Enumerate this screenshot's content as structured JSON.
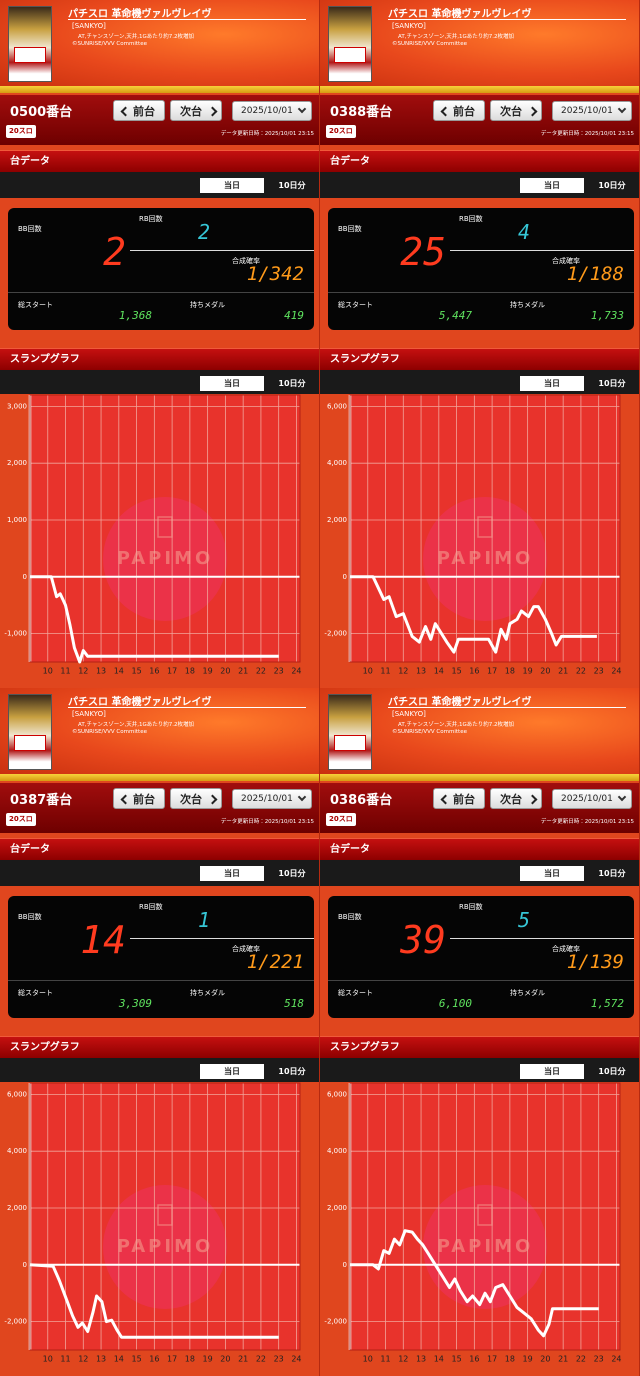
{
  "panels": [
    {
      "title": "パチスロ 革命機ヴァルヴレイヴ",
      "maker": "[SANKYO]",
      "spec": "AT,チャンスゾーン,天井,1Gあたり約7.2枚増加",
      "copyright": "©SUNRISE/VVV Committee",
      "machine": "0500番台",
      "prev": "前台",
      "next": "次台",
      "date": "2025/10/01",
      "rate": "20スロ",
      "updated": "データ更新日時：2025/10/01 23:15",
      "data_section": "台データ",
      "tabs": [
        "当日",
        "10日分"
      ],
      "bb_label": "BB回数",
      "bb": "2",
      "rb_label": "RB回数",
      "rb": "2",
      "prob_label": "合成確率",
      "prob": "1/342",
      "start_label": "総スタート",
      "start": "1,368",
      "medal_label": "持ちメダル",
      "medal": "419",
      "graph_section": "スランプグラフ",
      "graph_tabs": [
        "当日",
        "10日分"
      ],
      "watermark": "PAPIMO"
    },
    {
      "title": "パチスロ 革命機ヴァルヴレイヴ",
      "maker": "[SANKYO]",
      "spec": "AT,チャンスゾーン,天井,1Gあたり約7.2枚増加",
      "copyright": "©SUNRISE/VVV Committee",
      "machine": "0388番台",
      "prev": "前台",
      "next": "次台",
      "date": "2025/10/01",
      "rate": "20スロ",
      "updated": "データ更新日時：2025/10/01 23:15",
      "data_section": "台データ",
      "tabs": [
        "当日",
        "10日分"
      ],
      "bb_label": "BB回数",
      "bb": "25",
      "rb_label": "RB回数",
      "rb": "4",
      "prob_label": "合成確率",
      "prob": "1/188",
      "start_label": "総スタート",
      "start": "5,447",
      "medal_label": "持ちメダル",
      "medal": "1,733",
      "graph_section": "スランプグラフ",
      "graph_tabs": [
        "当日",
        "10日分"
      ],
      "watermark": "PAPIMO"
    },
    {
      "title": "パチスロ 革命機ヴァルヴレイヴ",
      "maker": "[SANKYO]",
      "spec": "AT,チャンスゾーン,天井,1Gあたり約7.2枚増加",
      "copyright": "©SUNRISE/VVV Committee",
      "machine": "0387番台",
      "prev": "前台",
      "next": "次台",
      "date": "2025/10/01",
      "rate": "20スロ",
      "updated": "データ更新日時：2025/10/01 23:15",
      "data_section": "台データ",
      "tabs": [
        "当日",
        "10日分"
      ],
      "bb_label": "BB回数",
      "bb": "14",
      "rb_label": "RB回数",
      "rb": "1",
      "prob_label": "合成確率",
      "prob": "1/221",
      "start_label": "総スタート",
      "start": "3,309",
      "medal_label": "持ちメダル",
      "medal": "518",
      "graph_section": "スランプグラフ",
      "graph_tabs": [
        "当日",
        "10日分"
      ],
      "watermark": "PAPIMO"
    },
    {
      "title": "パチスロ 革命機ヴァルヴレイヴ",
      "maker": "[SANKYO]",
      "spec": "AT,チャンスゾーン,天井,1Gあたり約7.2枚増加",
      "copyright": "©SUNRISE/VVV Committee",
      "machine": "0386番台",
      "prev": "前台",
      "next": "次台",
      "date": "2025/10/01",
      "rate": "20スロ",
      "updated": "データ更新日時：2025/10/01 23:15",
      "data_section": "台データ",
      "tabs": [
        "当日",
        "10日分"
      ],
      "bb_label": "BB回数",
      "bb": "39",
      "rb_label": "RB回数",
      "rb": "5",
      "prob_label": "合成確率",
      "prob": "1/139",
      "start_label": "総スタート",
      "start": "6,100",
      "medal_label": "持ちメダル",
      "medal": "1,572",
      "graph_section": "スランプグラフ",
      "graph_tabs": [
        "当日",
        "10日分"
      ],
      "watermark": "PAPIMO"
    }
  ],
  "chart_data": [
    {
      "type": "line",
      "color": "#ffffff",
      "grid": true,
      "x": [
        9,
        10.2,
        10.5,
        10.7,
        10.85,
        11.0,
        11.25,
        11.5,
        11.8,
        12.0,
        12.25,
        23
      ],
      "values": [
        0,
        0,
        -350,
        -300,
        -400,
        -500,
        -850,
        -1250,
        -1500,
        -1300,
        -1400,
        -1400
      ],
      "xlim": [
        9,
        24.2
      ],
      "xticks": [
        10,
        11,
        12,
        13,
        14,
        15,
        16,
        17,
        18,
        19,
        20,
        21,
        22,
        23,
        24
      ],
      "ylim": [
        -1500,
        3200
      ],
      "yticks": [
        {
          "value": -1000,
          "label": "-1,000"
        },
        0,
        {
          "value": 1000,
          "label": "1,000"
        },
        {
          "value": 2000,
          "label": "2,000"
        },
        {
          "value": 3000,
          "label": "3,000"
        }
      ]
    },
    {
      "type": "line",
      "color": "#ffffff",
      "grid": true,
      "x": [
        9,
        10.3,
        10.9,
        11.2,
        11.6,
        12.0,
        12.5,
        12.9,
        13.25,
        13.55,
        13.8,
        14.15,
        14.45,
        14.85,
        15.1,
        16.8,
        17.2,
        17.5,
        17.8,
        18.0,
        18.4,
        18.65,
        19.05,
        19.35,
        19.6,
        20.0,
        20.35,
        20.6,
        20.9,
        22.9
      ],
      "values": [
        0,
        0,
        -800,
        -700,
        -1400,
        -1300,
        -2100,
        -2300,
        -1750,
        -2200,
        -1650,
        -2000,
        -2300,
        -2650,
        -2200,
        -2200,
        -2650,
        -1850,
        -2200,
        -1650,
        -1500,
        -1200,
        -1400,
        -1050,
        -1050,
        -1500,
        -2000,
        -2400,
        -2100,
        -2100
      ],
      "xlim": [
        9,
        24.2
      ],
      "xticks": [
        10,
        11,
        12,
        13,
        14,
        15,
        16,
        17,
        18,
        19,
        20,
        21,
        22,
        23,
        24
      ],
      "ylim": [
        -3000,
        6400
      ],
      "yticks": [
        {
          "value": -2000,
          "label": "-2,000"
        },
        0,
        {
          "value": 2000,
          "label": "2,000"
        },
        {
          "value": 4000,
          "label": "4,000"
        },
        {
          "value": 6000,
          "label": "6,000"
        }
      ]
    },
    {
      "type": "line",
      "color": "#ffffff",
      "grid": true,
      "x": [
        9,
        10.3,
        10.65,
        11.1,
        11.4,
        11.7,
        11.95,
        12.25,
        12.55,
        12.75,
        13.05,
        13.3,
        13.6,
        13.9,
        14.15,
        14.45,
        23
      ],
      "values": [
        0,
        -50,
        -550,
        -1300,
        -1800,
        -2200,
        -2050,
        -2350,
        -1650,
        -1100,
        -1300,
        -2000,
        -1950,
        -2300,
        -2550,
        -2550,
        -2550
      ],
      "xlim": [
        9,
        24.2
      ],
      "xticks": [
        10,
        11,
        12,
        13,
        14,
        15,
        16,
        17,
        18,
        19,
        20,
        21,
        22,
        23,
        24
      ],
      "ylim": [
        -3000,
        6400
      ],
      "yticks": [
        {
          "value": -2000,
          "label": "-2,000"
        },
        0,
        {
          "value": 2000,
          "label": "2,000"
        },
        {
          "value": 4000,
          "label": "4,000"
        },
        {
          "value": 6000,
          "label": "6,000"
        }
      ]
    },
    {
      "type": "line",
      "color": "#ffffff",
      "grid": true,
      "x": [
        9,
        10.3,
        10.6,
        10.9,
        11.2,
        11.5,
        11.8,
        12.1,
        12.5,
        12.8,
        13.1,
        13.4,
        13.8,
        14.2,
        14.6,
        14.9,
        15.2,
        15.6,
        15.9,
        16.3,
        16.6,
        16.9,
        17.2,
        17.6,
        18.0,
        18.4,
        18.8,
        19.2,
        19.6,
        19.9,
        20.2,
        20.4,
        23
      ],
      "values": [
        0,
        0,
        -150,
        500,
        400,
        900,
        700,
        1200,
        1150,
        900,
        700,
        400,
        0,
        -400,
        -800,
        -500,
        -900,
        -1300,
        -1100,
        -1400,
        -1000,
        -1300,
        -800,
        -700,
        -1100,
        -1500,
        -1700,
        -1900,
        -2300,
        -2500,
        -2100,
        -1550,
        -1550
      ],
      "xlim": [
        9,
        24.2
      ],
      "xticks": [
        10,
        11,
        12,
        13,
        14,
        15,
        16,
        17,
        18,
        19,
        20,
        21,
        22,
        23,
        24
      ],
      "ylim": [
        -3000,
        6400
      ],
      "yticks": [
        {
          "value": -2000,
          "label": "-2,000"
        },
        0,
        {
          "value": 2000,
          "label": "2,000"
        },
        {
          "value": 4000,
          "label": "4,000"
        },
        {
          "value": 6000,
          "label": "6,000"
        }
      ]
    }
  ]
}
